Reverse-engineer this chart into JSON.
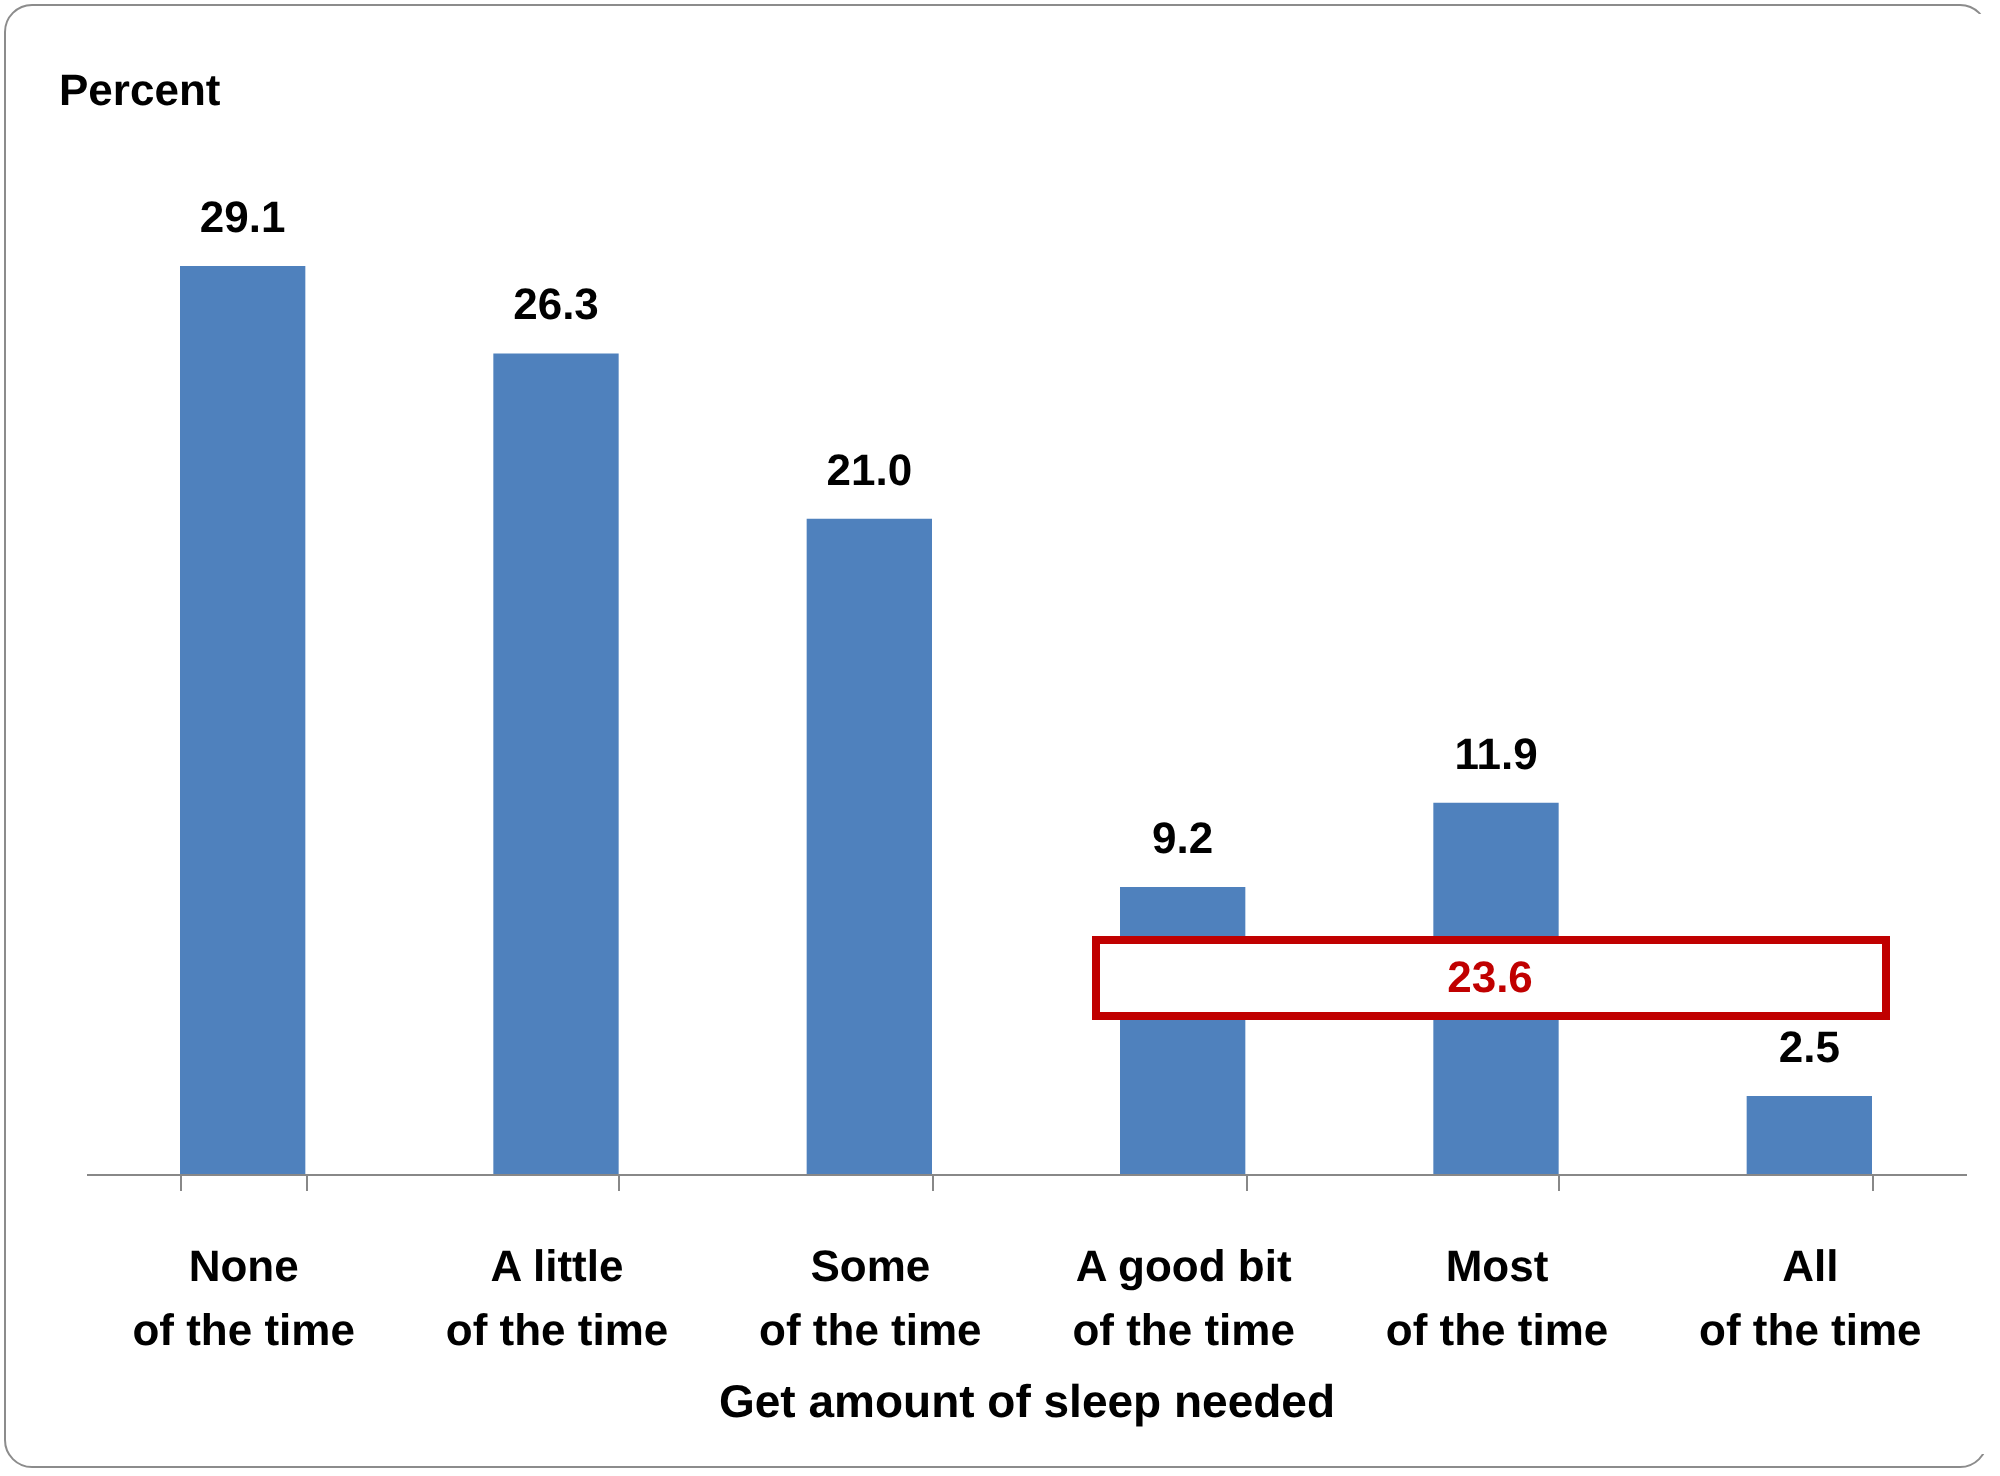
{
  "chart_data": {
    "type": "bar",
    "ylabel": "Percent",
    "xlabel": "Get amount of sleep needed",
    "categories": [
      "None\nof the time",
      "A little\nof the time",
      "Some\nof the time",
      "A good bit\nof the time",
      "Most\nof the time",
      "All\nof the time"
    ],
    "values": [
      29.1,
      26.3,
      21.0,
      9.2,
      11.9,
      2.5
    ],
    "color": "#4f81bd",
    "value_labels": [
      "29.1",
      "26.3",
      "21.0",
      "9.2",
      "11.9",
      "2.5"
    ],
    "annotations": [
      "23.6"
    ]
  }
}
